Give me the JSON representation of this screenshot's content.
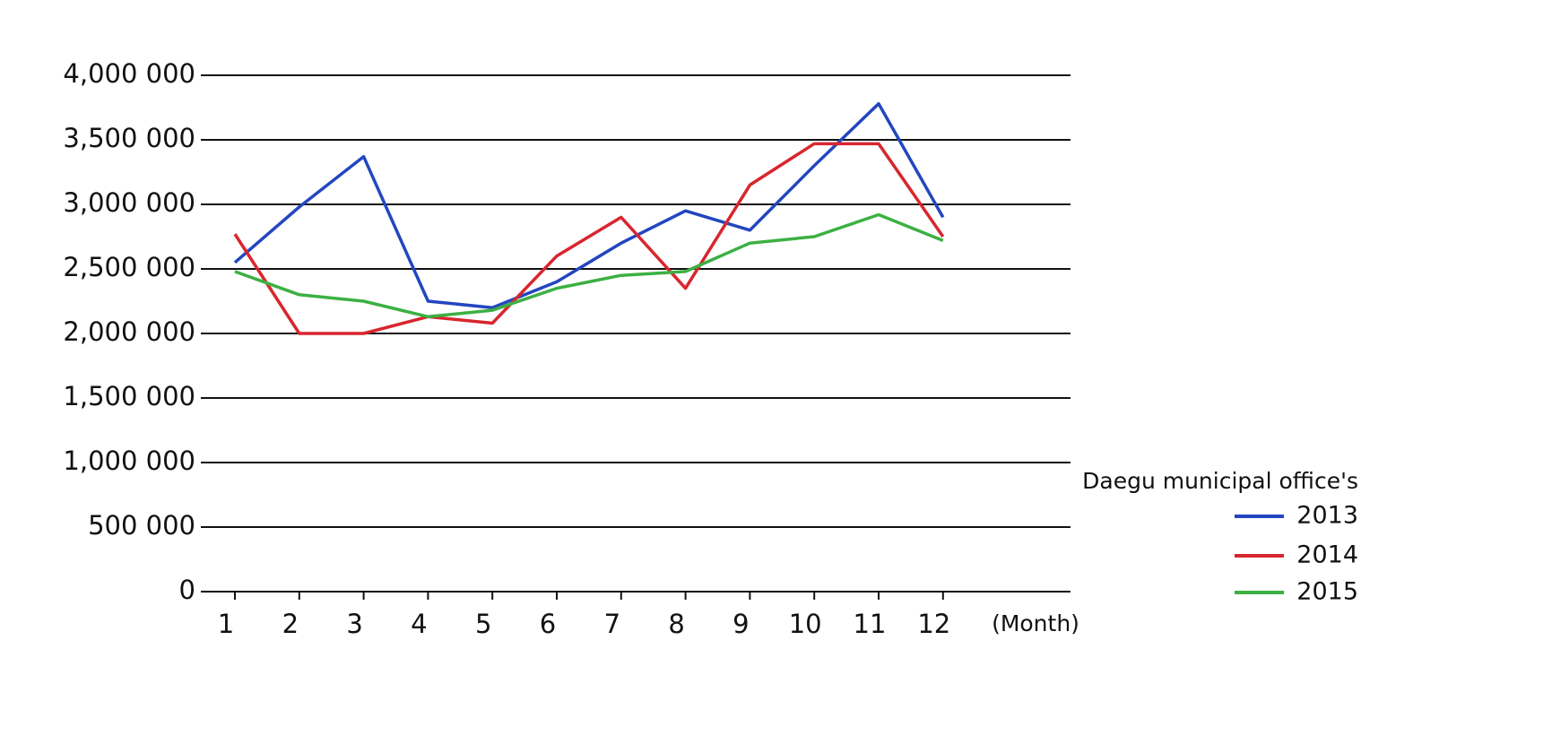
{
  "chart_data": {
    "type": "line",
    "x_label": "(Month)",
    "legend_title": "Daegu municipal office's",
    "categories": [
      "1",
      "2",
      "3",
      "4",
      "5",
      "6",
      "7",
      "8",
      "9",
      "10",
      "11",
      "12"
    ],
    "series": [
      {
        "name": "2013",
        "color": "#2346c0",
        "values": [
          2550000,
          2980000,
          3370000,
          2250000,
          2200000,
          2400000,
          2700000,
          2950000,
          2800000,
          3300000,
          3780000,
          2900000
        ]
      },
      {
        "name": "2014",
        "color": "#d8262e",
        "values": [
          2770000,
          2000000,
          2000000,
          2130000,
          2080000,
          2600000,
          2900000,
          2350000,
          3150000,
          3470000,
          3470000,
          2750000
        ]
      },
      {
        "name": "2015",
        "color": "#3cb043",
        "values": [
          2480000,
          2300000,
          2250000,
          2130000,
          2180000,
          2350000,
          2450000,
          2480000,
          2700000,
          2750000,
          2920000,
          2720000
        ]
      }
    ],
    "ylim": [
      0,
      4000000
    ],
    "yticks": [
      0,
      {
        "value": 500000,
        "label": "500 000"
      },
      {
        "value": 1000000,
        "label": "1,000 000"
      },
      {
        "value": 1500000,
        "label": "1,500 000"
      },
      {
        "value": 2000000,
        "label": "2,000 000"
      },
      {
        "value": 2500000,
        "label": "2,500 000"
      },
      {
        "value": 3000000,
        "label": "3,000 000"
      },
      {
        "value": 3500000,
        "label": "3,500 000"
      },
      {
        "value": 4000000,
        "label": "4,000 000"
      }
    ],
    "grid": true
  }
}
